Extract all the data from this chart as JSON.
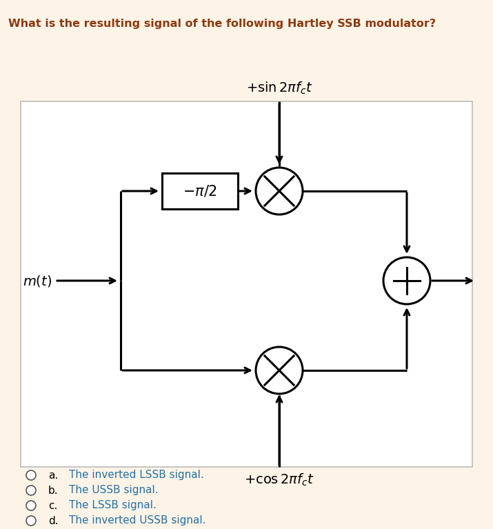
{
  "title": "What is the resulting signal of the following Hartley SSB modulator?",
  "title_color": "#8b3a0f",
  "bg_color": "#fdf3e7",
  "diagram_bg": "#ffffff",
  "line_color": "#000000",
  "text_color": "#000000",
  "sin_label": "$+ \\sin 2\\pi f_c t$",
  "cos_label": "$+ \\cos 2\\pi f_c t$",
  "mt_label": "$m(t)$",
  "phase_label": "$-\\pi/2$",
  "options": [
    {
      "letter": "a.",
      "text": "The inverted LSSB signal."
    },
    {
      "letter": "b.",
      "text": "The USSB signal."
    },
    {
      "letter": "c.",
      "text": "The LSSB signal."
    },
    {
      "letter": "d.",
      "text": "The inverted USSB signal."
    }
  ],
  "option_color": "#2471a3",
  "option_letter_color": "#000000"
}
